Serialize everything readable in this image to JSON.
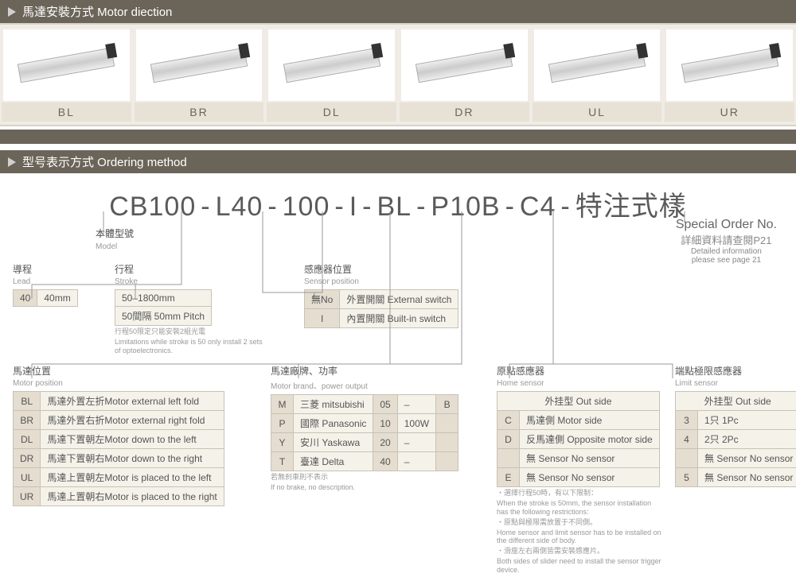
{
  "colors": {
    "header_bg": "#6b6459",
    "header_text": "#ffffff",
    "band_bg": "#f0ece5",
    "label_bg": "#e8e2d6",
    "cell_bg": "#f5f2ea",
    "code_bg": "#e4ddd0",
    "border": "#c8c2b6",
    "text": "#4a4a4a",
    "muted": "#999999"
  },
  "section1": {
    "title": "馬達安裝方式 Motor diection",
    "items": [
      "BL",
      "BR",
      "DL",
      "DR",
      "UL",
      "UR"
    ]
  },
  "section2": {
    "title": "型号表示方式  Ordering method",
    "part_segments": [
      "CB100",
      "L40",
      "100",
      "I",
      "BL",
      "P10B",
      "C4",
      "特注式樣"
    ],
    "model_label": "本體型號",
    "model_sub": "Model",
    "special": {
      "title": "Special Order No.",
      "line1": "詳細資料請查閱P21",
      "line2": "Detailed information",
      "line3": "please see page 21"
    }
  },
  "lead": {
    "title": "導程",
    "sub": "Lead",
    "rows": [
      [
        "40",
        "40mm"
      ]
    ]
  },
  "stroke": {
    "title": "行程",
    "sub": "Stroke",
    "rows": [
      [
        "50–1800mm"
      ],
      [
        "50間隔 50mm Pitch"
      ]
    ],
    "note1": "行程50限定只能安裝2組光電",
    "note2": "Limitations while stroke is 50 only install 2 sets of optoelectronics."
  },
  "sensor_pos": {
    "title": "感應器位置",
    "sub": "Sensor position",
    "rows": [
      [
        "無No",
        "外置開關  External switch"
      ],
      [
        "I",
        "內置開關  Built-in switch"
      ]
    ]
  },
  "motor_pos": {
    "title": "馬達位置",
    "sub": "Motor position",
    "rows": [
      [
        "BL",
        "馬達外置左折Motor external left fold"
      ],
      [
        "BR",
        "馬達外置右折Motor external right fold"
      ],
      [
        "DL",
        "馬達下置朝左Motor down to the left"
      ],
      [
        "DR",
        "馬達下置朝右Motor down to the right"
      ],
      [
        "UL",
        "馬達上置朝左Motor is placed to the left"
      ],
      [
        "UR",
        "馬達上置朝右Motor is placed to the right"
      ]
    ]
  },
  "motor_brand": {
    "title": "馬達廠牌、功率",
    "sub": "Motor brand、power output",
    "rows": [
      [
        "M",
        "三菱 mitsubishi",
        "05",
        "–",
        "B"
      ],
      [
        "P",
        "國際 Panasonic",
        "10",
        "100W",
        ""
      ],
      [
        "Y",
        "安川 Yaskawa",
        "20",
        "–",
        ""
      ],
      [
        "T",
        "臺達 Delta",
        "40",
        "–",
        ""
      ]
    ],
    "note1": "若無刹車則不表示",
    "note2": "If no brake, no description."
  },
  "home_sensor": {
    "title": "原點感應器",
    "sub": "Home sensor",
    "header": "外挂型 Out side",
    "rows": [
      [
        "C",
        "馬達側 Motor side"
      ],
      [
        "D",
        "反馬達側 Opposite motor side"
      ],
      [
        "",
        "無 Sensor No sensor"
      ],
      [
        "E",
        "無 Sensor No sensor"
      ]
    ],
    "foot1": "・選擇行程50時，有以下限制：",
    "foot1b": "When the stroke is 50mm, the sensor installation has the following restrictions:",
    "foot2": "・原點與極限需放置于不同側。",
    "foot2b": "Home sensor and limit sensor has to be installed on the different side of body.",
    "foot3": "・滑座左右兩側皆需安裝感應片。",
    "foot3b": "Both sides of slider need to install the sensor trigger device."
  },
  "limit_sensor": {
    "title": "端點極限感應器",
    "sub": "Limit sensor",
    "header": "外挂型 Out side",
    "rows": [
      [
        "3",
        "1只 1Pc"
      ],
      [
        "4",
        "2只 2Pc"
      ],
      [
        "",
        "無 Sensor No sensor"
      ],
      [
        "5",
        "無 Sensor No sensor"
      ]
    ]
  }
}
